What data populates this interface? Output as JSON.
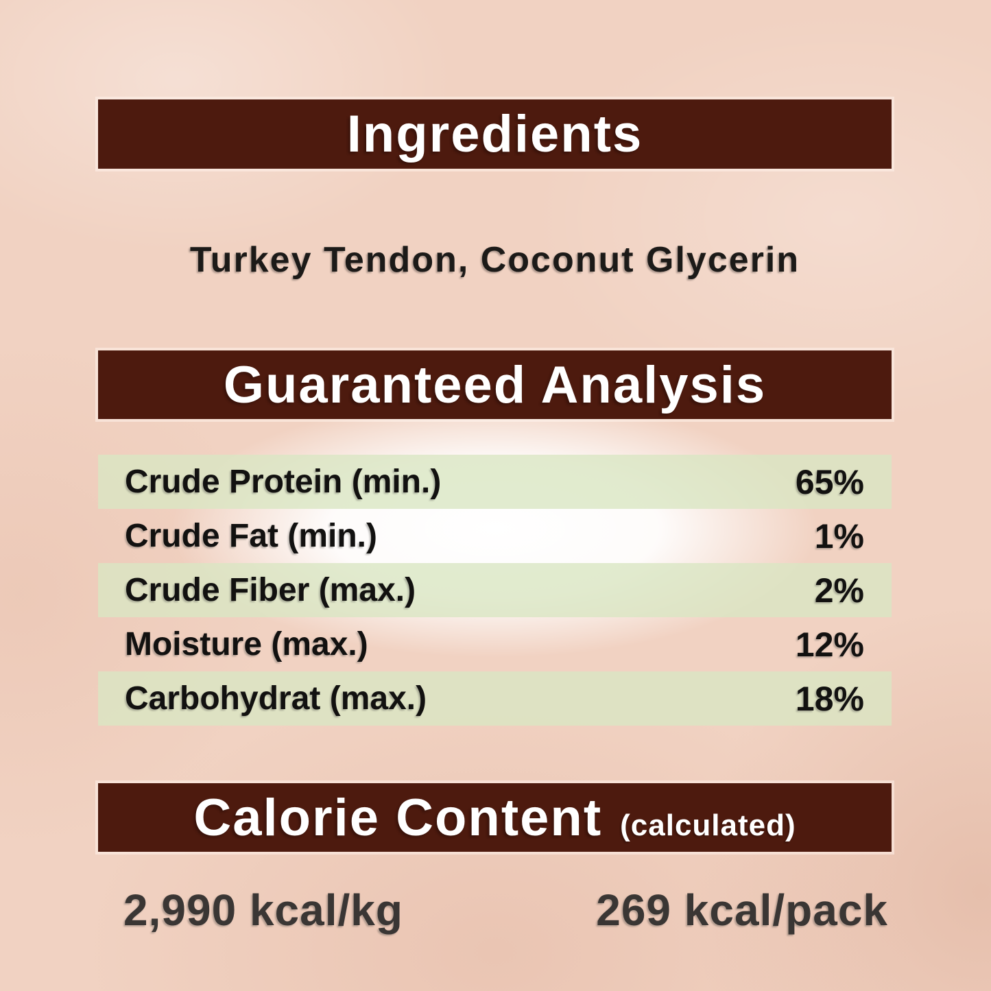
{
  "page": {
    "background_color": "#f1d2c2",
    "bar_color": "#4d1a0e",
    "row_highlight_color": "#e2e6c8",
    "header_text_color": "#ffffff",
    "body_text_color": "#121110",
    "kcal_text_color": "#3a3634"
  },
  "sections": {
    "ingredients": {
      "title": "Ingredients",
      "content": "Turkey Tendon, Coconut Glycerin"
    },
    "guaranteed_analysis": {
      "title": "Guaranteed Analysis",
      "rows": [
        {
          "label": "Crude Protein (min.)",
          "value": "65%"
        },
        {
          "label": "Crude Fat (min.)",
          "value": "1%"
        },
        {
          "label": "Crude Fiber (max.)",
          "value": "2%"
        },
        {
          "label": "Moisture (max.)",
          "value": "12%"
        },
        {
          "label": "Carbohydrat (max.)",
          "value": "18%"
        }
      ]
    },
    "calorie_content": {
      "title": "Calorie Content",
      "subtitle": "(calculated)",
      "per_kg": "2,990 kcal/kg",
      "per_pack": "269 kcal/pack"
    }
  }
}
